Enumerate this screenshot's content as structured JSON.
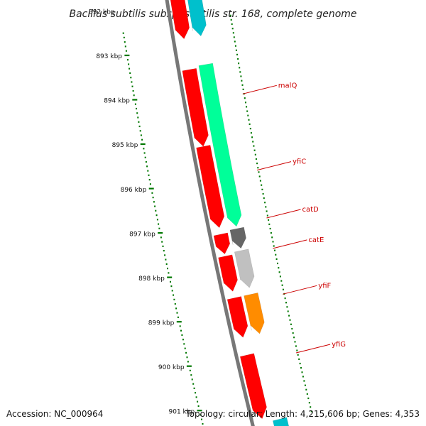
{
  "title": "Bacillus subtilis subsp. subtilis str. 168, complete genome",
  "ticks": [
    {
      "kbp": 892,
      "label": "892 kbp"
    },
    {
      "kbp": 893,
      "label": "893 kbp"
    },
    {
      "kbp": 894,
      "label": "894 kbp"
    },
    {
      "kbp": 895,
      "label": "895 kbp"
    },
    {
      "kbp": 896,
      "label": "896 kbp"
    },
    {
      "kbp": 897,
      "label": "897 kbp"
    },
    {
      "kbp": 898,
      "label": "898 kbp"
    },
    {
      "kbp": 899,
      "label": "899 kbp"
    },
    {
      "kbp": 900,
      "label": "900 kbp"
    },
    {
      "kbp": 901,
      "label": "901 kbp"
    }
  ],
  "features": [
    {
      "track": "cds",
      "start": 891.7,
      "end": 892.85,
      "color": "#ff0000"
    },
    {
      "track": "cds",
      "start": 893.55,
      "end": 895.3,
      "color": "#ff0000"
    },
    {
      "track": "cds",
      "start": 895.3,
      "end": 897.15,
      "color": "#ff0000"
    },
    {
      "track": "cds",
      "start": 897.3,
      "end": 897.75,
      "color": "#ff0000"
    },
    {
      "track": "cds",
      "start": 897.8,
      "end": 898.6,
      "color": "#ff0000"
    },
    {
      "track": "cds",
      "start": 898.75,
      "end": 899.65,
      "color": "#ff0000"
    },
    {
      "track": "cds",
      "start": 900.05,
      "end": 901.5,
      "color": "#ff0000"
    },
    {
      "track": "gene",
      "start": 891.7,
      "end": 892.85,
      "color": "#00c0cc",
      "label": ""
    },
    {
      "track": "gene",
      "start": 893.5,
      "end": 897.2,
      "color": "#00ff99",
      "label": "malQ",
      "label_kbp": 894.3
    },
    {
      "track": "gene",
      "start": 897.25,
      "end": 897.7,
      "color": "#666666",
      "label": "catD",
      "label_kbp": 897.15
    },
    {
      "track": "gene",
      "start": 897.75,
      "end": 898.6,
      "color": "#c0c0c0",
      "label": "catE",
      "label_kbp": 897.85
    },
    {
      "track": "gene",
      "start": 898.75,
      "end": 899.65,
      "color": "#ff8c00",
      "label": "yfiF",
      "label_kbp": 898.9
    },
    {
      "track": "gene",
      "start": 0,
      "end": 0,
      "color": "#00ff99",
      "label": "yfiC",
      "label_kbp": 896.05
    },
    {
      "track": "gene",
      "start": 0,
      "end": 0,
      "color": "#ff0000",
      "label": "yfiG",
      "label_kbp": 900.25
    },
    {
      "track": "gene",
      "start": 901.6,
      "end": 902.0,
      "color": "#00c0cc",
      "label": ""
    }
  ],
  "colors": {
    "backbone": "#777777",
    "tick": "#007700",
    "label_line": "#cc0000",
    "label_text": "#cc0000"
  },
  "footer": {
    "accession": "Accession: NC_000964",
    "summary": "Topology: circular; Length: 4,215,606 bp; Genes: 4,353"
  }
}
